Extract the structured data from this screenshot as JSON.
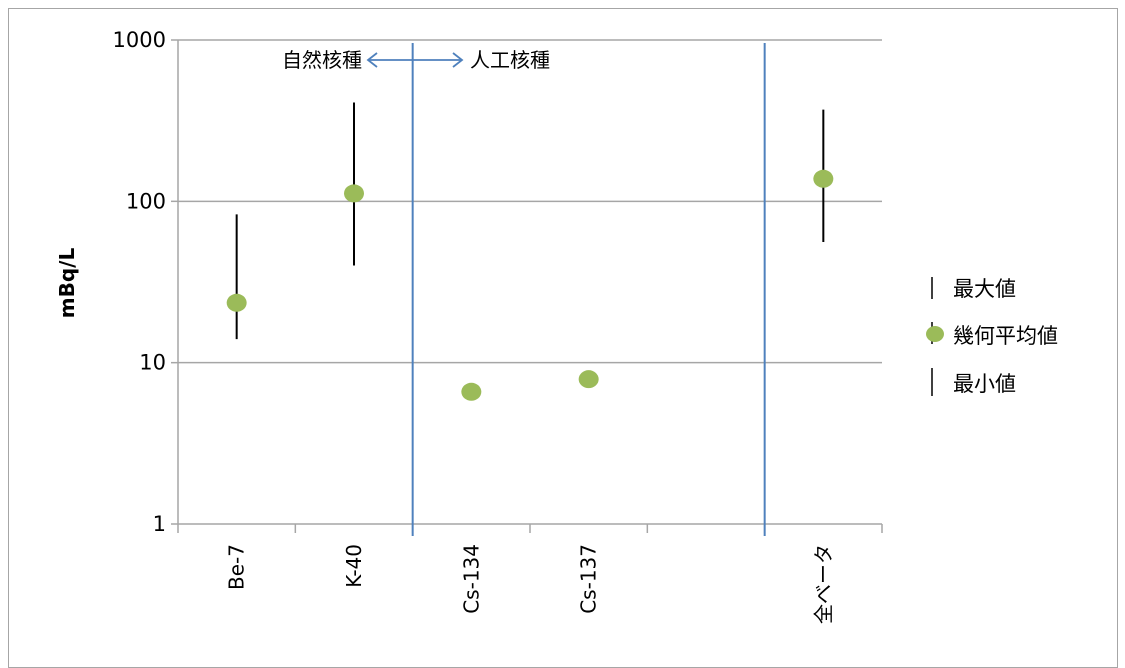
{
  "chart_data": {
    "type": "scatter",
    "ylabel": "mBq/L",
    "yscale": "log",
    "ylim": [
      1,
      1000
    ],
    "y_ticks": [
      "1",
      "10",
      "100",
      "1000"
    ],
    "categories": [
      "Be-7",
      "K-40",
      "Cs-134",
      "Cs-137",
      "",
      "全ベータ"
    ],
    "series": [
      {
        "name": "最大値",
        "values": [
          83,
          410,
          null,
          null,
          null,
          370
        ]
      },
      {
        "name": "幾何平均値",
        "values": [
          23.5,
          112,
          6.6,
          7.9,
          null,
          138
        ]
      },
      {
        "name": "最小値",
        "values": [
          14,
          40,
          null,
          null,
          null,
          56
        ]
      }
    ],
    "annotations": {
      "left_region": "自然核種",
      "right_region": "人工核種"
    },
    "colors": {
      "mean": "#9bbb59",
      "range": "#000000",
      "divider": "#4f81bd",
      "grid": "#a6a6a6"
    },
    "grid": true,
    "legend_position": "right"
  }
}
